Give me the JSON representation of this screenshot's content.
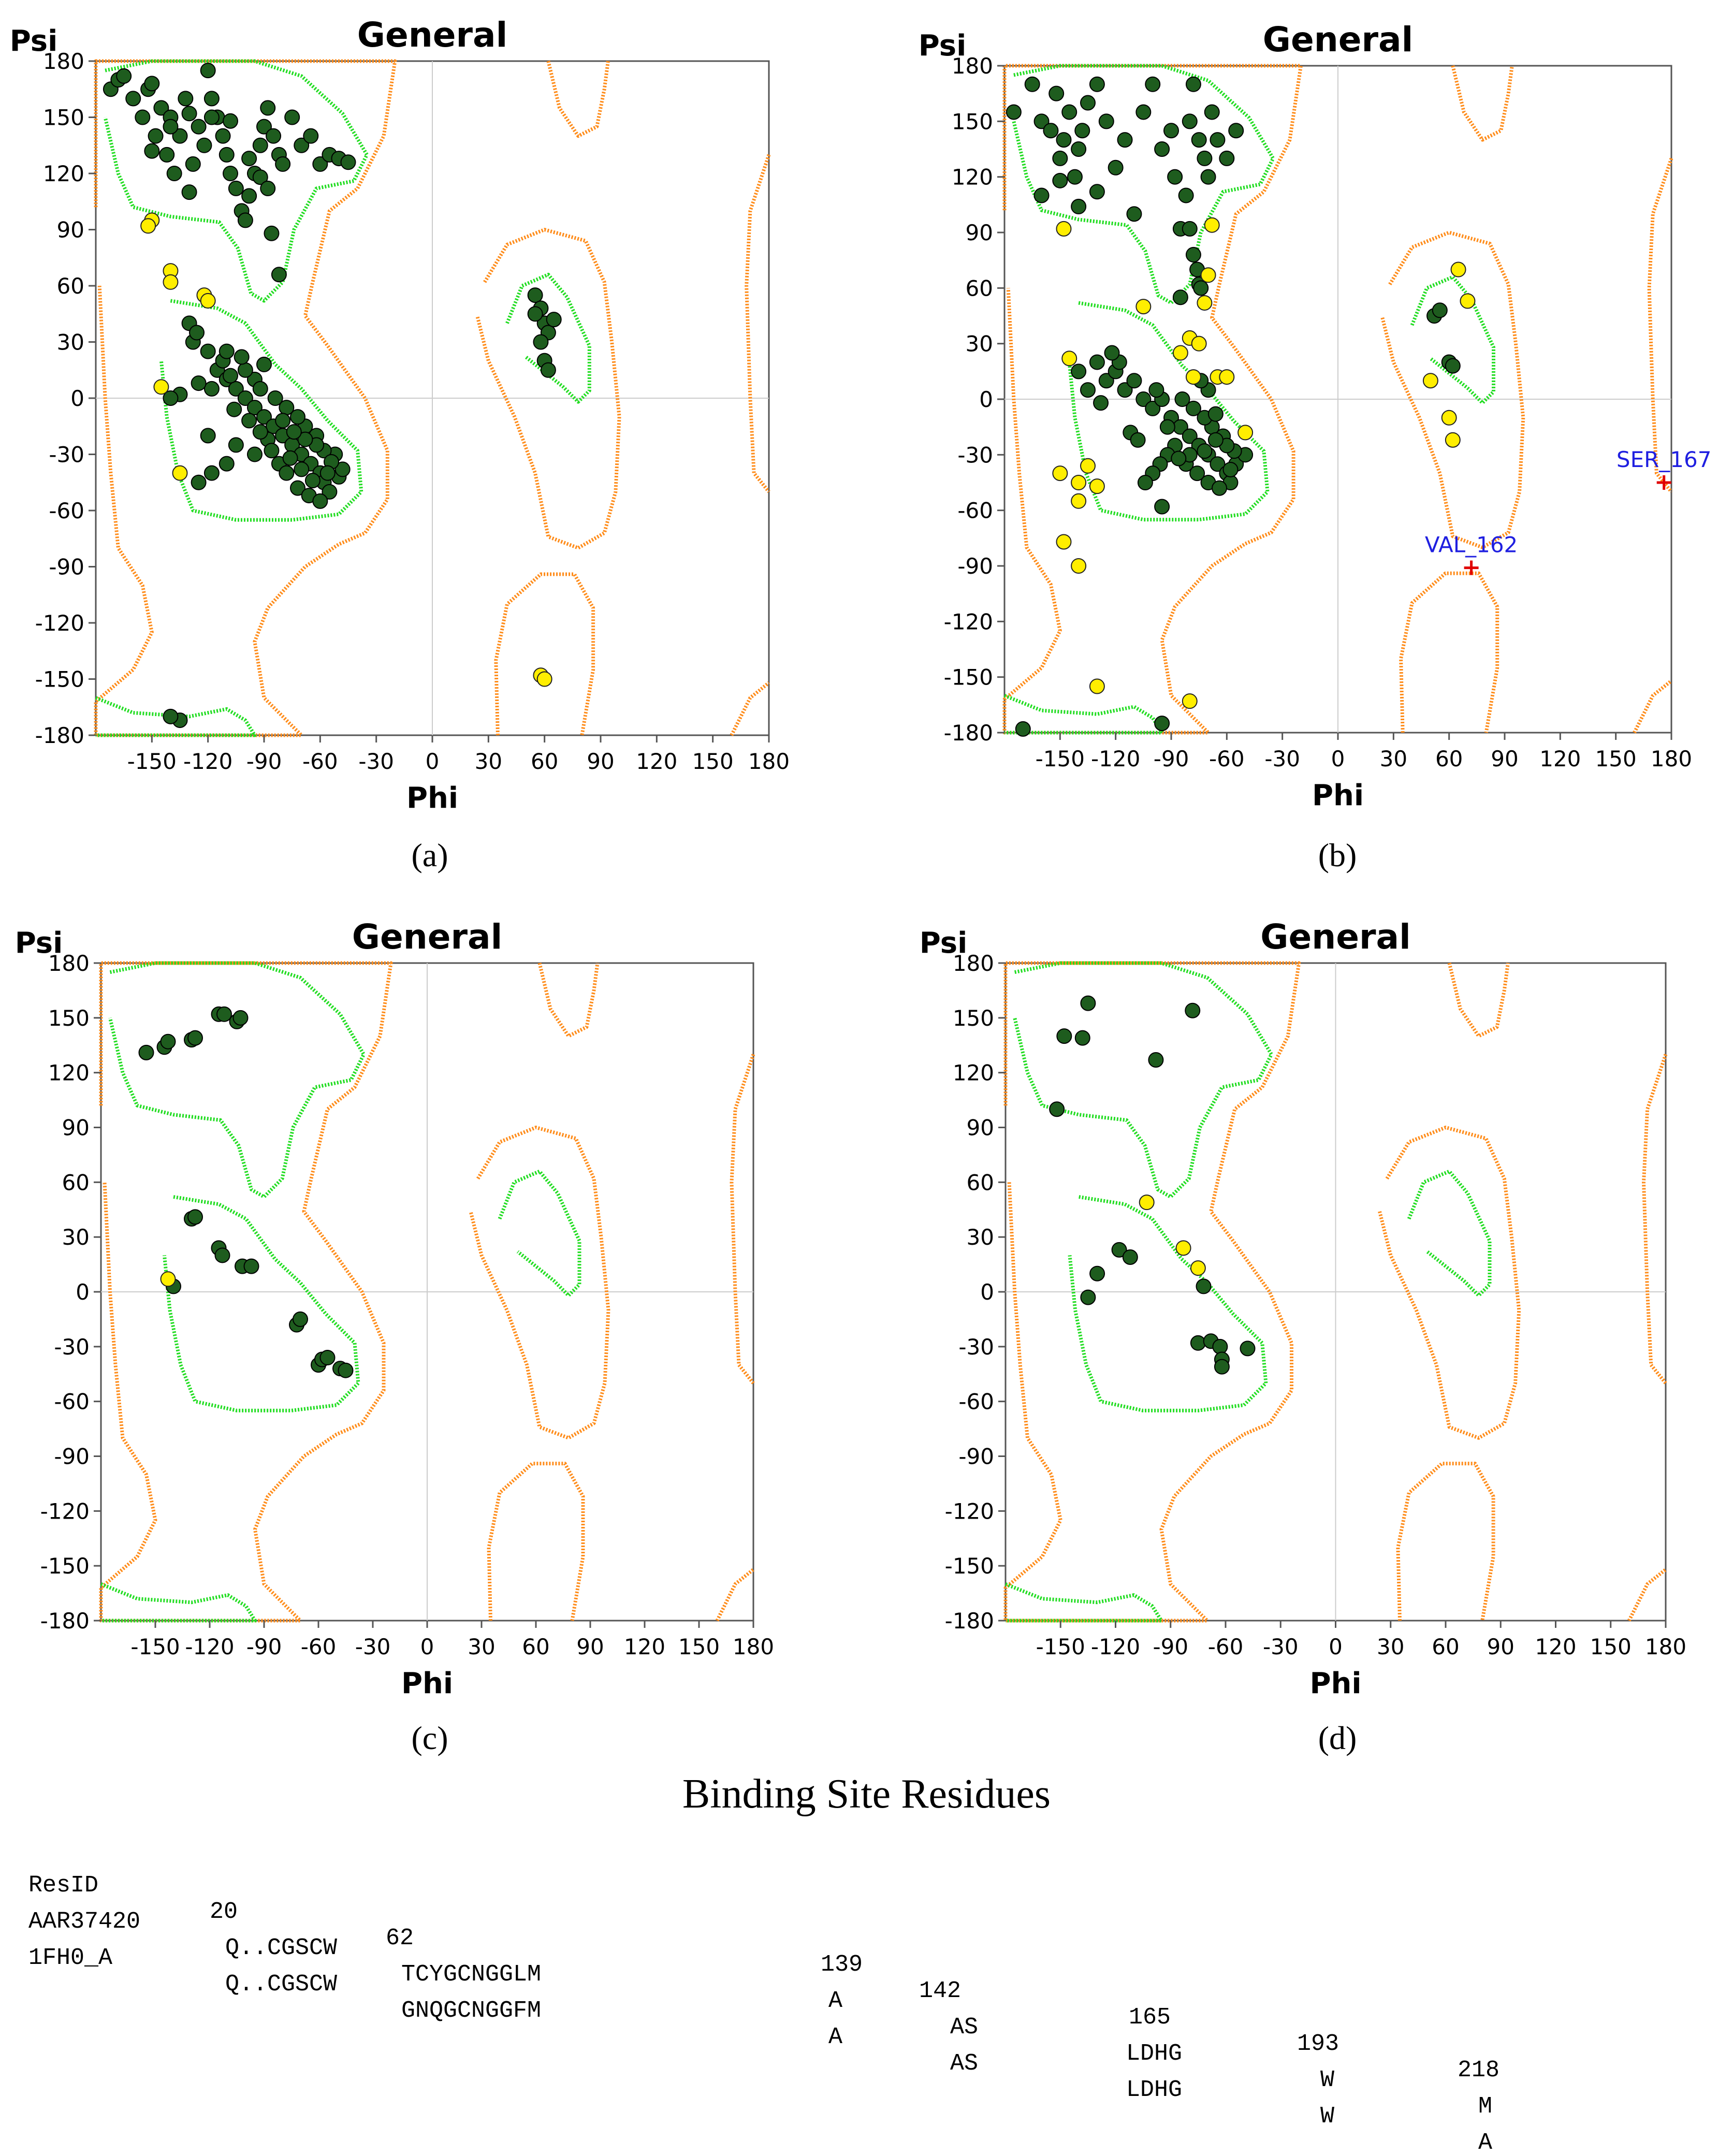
{
  "colors": {
    "core": "#22dd22",
    "allowed": "#ff8c1a",
    "favored_point": "#1e5c1e",
    "allowed_point": "#ffee00",
    "outlier": "#e00000",
    "outlier_label": "#1f1fe0"
  },
  "chart_data": [
    {
      "type": "scatter",
      "panel": "(a)",
      "title": "General",
      "xlabel": "Phi",
      "ylabel": "Psi",
      "xlim": [
        -180,
        180
      ],
      "ylim": [
        -180,
        180
      ],
      "xticks": [
        -150,
        -120,
        -90,
        -60,
        -30,
        0,
        30,
        60,
        90,
        120,
        150,
        180
      ],
      "yticks": [
        180,
        150,
        120,
        90,
        60,
        30,
        0,
        -30,
        -60,
        -90,
        -120,
        -150,
        -180
      ],
      "favored": [
        [
          -172,
          165
        ],
        [
          -168,
          170
        ],
        [
          -165,
          172
        ],
        [
          -160,
          160
        ],
        [
          -155,
          150
        ],
        [
          -152,
          165
        ],
        [
          -150,
          168
        ],
        [
          -148,
          140
        ],
        [
          -145,
          155
        ],
        [
          -142,
          130
        ],
        [
          -140,
          150
        ],
        [
          -138,
          120
        ],
        [
          -135,
          140
        ],
        [
          -132,
          160
        ],
        [
          -130,
          110
        ],
        [
          -128,
          125
        ],
        [
          -125,
          145
        ],
        [
          -122,
          135
        ],
        [
          -120,
          175
        ],
        [
          -118,
          160
        ],
        [
          -115,
          150
        ],
        [
          -112,
          140
        ],
        [
          -110,
          130
        ],
        [
          -108,
          120
        ],
        [
          -105,
          112
        ],
        [
          -102,
          100
        ],
        [
          -100,
          95
        ],
        [
          -98,
          108
        ],
        [
          -95,
          120
        ],
        [
          -92,
          135
        ],
        [
          -90,
          145
        ],
        [
          -88,
          155
        ],
        [
          -85,
          140
        ],
        [
          -82,
          130
        ],
        [
          -80,
          125
        ],
        [
          -75,
          150
        ],
        [
          -70,
          135
        ],
        [
          -65,
          140
        ],
        [
          -60,
          125
        ],
        [
          -55,
          130
        ],
        [
          -50,
          128
        ],
        [
          -45,
          126
        ],
        [
          -150,
          132
        ],
        [
          -140,
          145
        ],
        [
          -130,
          152
        ],
        [
          -118,
          150
        ],
        [
          -108,
          148
        ],
        [
          -98,
          128
        ],
        [
          -92,
          118
        ],
        [
          -88,
          112
        ],
        [
          -86,
          88
        ],
        [
          -82,
          66
        ],
        [
          -130,
          40
        ],
        [
          -128,
          30
        ],
        [
          -126,
          35
        ],
        [
          -120,
          25
        ],
        [
          -115,
          15
        ],
        [
          -110,
          10
        ],
        [
          -105,
          5
        ],
        [
          -100,
          0
        ],
        [
          -95,
          -5
        ],
        [
          -90,
          -10
        ],
        [
          -85,
          -15
        ],
        [
          -80,
          -20
        ],
        [
          -75,
          -25
        ],
        [
          -70,
          -30
        ],
        [
          -65,
          -35
        ],
        [
          -60,
          -40
        ],
        [
          -58,
          -45
        ],
        [
          -55,
          -50
        ],
        [
          -50,
          -42
        ],
        [
          -48,
          -38
        ],
        [
          -52,
          -30
        ],
        [
          -62,
          -20
        ],
        [
          -68,
          -15
        ],
        [
          -72,
          -10
        ],
        [
          -78,
          -5
        ],
        [
          -84,
          0
        ],
        [
          -95,
          10
        ],
        [
          -100,
          15
        ],
        [
          -108,
          12
        ],
        [
          -112,
          20
        ],
        [
          -118,
          5
        ],
        [
          -125,
          8
        ],
        [
          -135,
          2
        ],
        [
          -140,
          0
        ],
        [
          -120,
          -20
        ],
        [
          -118,
          -40
        ],
        [
          -110,
          -35
        ],
        [
          -125,
          -45
        ],
        [
          -105,
          -25
        ],
        [
          -95,
          -30
        ],
        [
          -88,
          -22
        ],
        [
          -82,
          -35
        ],
        [
          -78,
          -40
        ],
        [
          -72,
          -48
        ],
        [
          -66,
          -52
        ],
        [
          -60,
          -55
        ],
        [
          -58,
          -28
        ],
        [
          -62,
          -25
        ],
        [
          -68,
          -22
        ],
        [
          -74,
          -18
        ],
        [
          -80,
          -12
        ],
        [
          -54,
          -34
        ],
        [
          -56,
          -40
        ],
        [
          -64,
          -44
        ],
        [
          -70,
          -38
        ],
        [
          -76,
          -32
        ],
        [
          -86,
          -28
        ],
        [
          -92,
          -18
        ],
        [
          -98,
          -12
        ],
        [
          -102,
          22
        ],
        [
          -106,
          -6
        ],
        [
          -92,
          5
        ],
        [
          -110,
          25
        ],
        [
          -90,
          18
        ],
        [
          55,
          55
        ],
        [
          58,
          48
        ],
        [
          60,
          40
        ],
        [
          62,
          35
        ],
        [
          58,
          30
        ],
        [
          60,
          20
        ],
        [
          62,
          15
        ],
        [
          55,
          45
        ],
        [
          65,
          42
        ],
        [
          -135,
          -172
        ],
        [
          -140,
          -170
        ]
      ],
      "allowed": [
        [
          -150,
          95
        ],
        [
          -152,
          92
        ],
        [
          -140,
          68
        ],
        [
          -140,
          62
        ],
        [
          -122,
          55
        ],
        [
          -120,
          52
        ],
        [
          -145,
          6
        ],
        [
          -135,
          -40
        ],
        [
          58,
          -148
        ],
        [
          60,
          -150
        ]
      ],
      "outliers": []
    },
    {
      "type": "scatter",
      "panel": "(b)",
      "title": "General",
      "xlabel": "Phi",
      "ylabel": "Psi",
      "xlim": [
        -180,
        180
      ],
      "ylim": [
        -180,
        180
      ],
      "xticks": [
        -150,
        -120,
        -90,
        -60,
        -30,
        0,
        30,
        60,
        90,
        120,
        150,
        180
      ],
      "yticks": [
        180,
        150,
        120,
        90,
        60,
        30,
        0,
        -30,
        -60,
        -90,
        -120,
        -150,
        -180
      ],
      "favored": [
        [
          -175,
          155
        ],
        [
          -165,
          170
        ],
        [
          -160,
          150
        ],
        [
          -155,
          145
        ],
        [
          -152,
          165
        ],
        [
          -150,
          130
        ],
        [
          -148,
          140
        ],
        [
          -145,
          155
        ],
        [
          -142,
          120
        ],
        [
          -140,
          135
        ],
        [
          -138,
          145
        ],
        [
          -135,
          160
        ],
        [
          -130,
          170
        ],
        [
          -125,
          150
        ],
        [
          -120,
          125
        ],
        [
          -115,
          140
        ],
        [
          -110,
          100
        ],
        [
          -105,
          155
        ],
        [
          -100,
          170
        ],
        [
          -95,
          135
        ],
        [
          -90,
          145
        ],
        [
          -88,
          120
        ],
        [
          -85,
          92
        ],
        [
          -82,
          110
        ],
        [
          -80,
          150
        ],
        [
          -78,
          170
        ],
        [
          -75,
          140
        ],
        [
          -72,
          130
        ],
        [
          -70,
          120
        ],
        [
          -68,
          155
        ],
        [
          -65,
          140
        ],
        [
          -60,
          130
        ],
        [
          -55,
          145
        ],
        [
          -160,
          110
        ],
        [
          -150,
          118
        ],
        [
          -140,
          104
        ],
        [
          -130,
          112
        ],
        [
          -80,
          92
        ],
        [
          -78,
          78
        ],
        [
          -76,
          70
        ],
        [
          -75,
          62
        ],
        [
          -85,
          55
        ],
        [
          -74,
          60
        ],
        [
          -130,
          20
        ],
        [
          -125,
          10
        ],
        [
          -120,
          15
        ],
        [
          -118,
          20
        ],
        [
          -115,
          5
        ],
        [
          -110,
          10
        ],
        [
          -105,
          0
        ],
        [
          -100,
          -5
        ],
        [
          -95,
          0
        ],
        [
          -90,
          -10
        ],
        [
          -85,
          -15
        ],
        [
          -80,
          -20
        ],
        [
          -75,
          -25
        ],
        [
          -70,
          -30
        ],
        [
          -65,
          -35
        ],
        [
          -60,
          -40
        ],
        [
          -58,
          -45
        ],
        [
          -55,
          -35
        ],
        [
          -50,
          -30
        ],
        [
          -62,
          -20
        ],
        [
          -68,
          -15
        ],
        [
          -72,
          -10
        ],
        [
          -78,
          -5
        ],
        [
          -84,
          0
        ],
        [
          -88,
          -25
        ],
        [
          -92,
          -30
        ],
        [
          -96,
          -35
        ],
        [
          -100,
          -40
        ],
        [
          -104,
          -45
        ],
        [
          -82,
          -35
        ],
        [
          -76,
          -40
        ],
        [
          -70,
          -45
        ],
        [
          -64,
          -48
        ],
        [
          -58,
          -38
        ],
        [
          -56,
          -28
        ],
        [
          -60,
          -25
        ],
        [
          -66,
          -22
        ],
        [
          -72,
          -28
        ],
        [
          -80,
          -30
        ],
        [
          -86,
          -32
        ],
        [
          -92,
          -15
        ],
        [
          -98,
          5
        ],
        [
          -140,
          15
        ],
        [
          -135,
          5
        ],
        [
          -128,
          -2
        ],
        [
          -122,
          25
        ],
        [
          -112,
          -18
        ],
        [
          -108,
          -22
        ],
        [
          -70,
          5
        ],
        [
          -74,
          10
        ],
        [
          -66,
          -8
        ],
        [
          -95,
          -58
        ],
        [
          52,
          45
        ],
        [
          55,
          48
        ],
        [
          60,
          20
        ],
        [
          62,
          18
        ],
        [
          -170,
          -178
        ],
        [
          -95,
          -175
        ]
      ],
      "allowed": [
        [
          -148,
          92
        ],
        [
          -105,
          50
        ],
        [
          -80,
          33
        ],
        [
          -72,
          52
        ],
        [
          -70,
          67
        ],
        [
          -68,
          94
        ],
        [
          -75,
          30
        ],
        [
          -85,
          25
        ],
        [
          -78,
          12
        ],
        [
          -65,
          12
        ],
        [
          -60,
          12
        ],
        [
          -50,
          -18
        ],
        [
          -145,
          22
        ],
        [
          -150,
          -40
        ],
        [
          -140,
          -45
        ],
        [
          -135,
          -36
        ],
        [
          -130,
          -47
        ],
        [
          -140,
          -55
        ],
        [
          -148,
          -77
        ],
        [
          -140,
          -90
        ],
        [
          -130,
          -155
        ],
        [
          -80,
          -163
        ],
        [
          65,
          70
        ],
        [
          70,
          53
        ],
        [
          50,
          10
        ],
        [
          60,
          -10
        ],
        [
          62,
          -22
        ]
      ],
      "outliers": [
        {
          "label": "SER_167",
          "phi": 176,
          "psi": -45
        },
        {
          "label": "VAL_162",
          "phi": 72,
          "psi": -91
        }
      ]
    },
    {
      "type": "scatter",
      "panel": "(c)",
      "title": "General",
      "xlabel": "Phi",
      "ylabel": "Psi",
      "xlim": [
        -180,
        180
      ],
      "ylim": [
        -180,
        180
      ],
      "xticks": [
        -150,
        -120,
        -90,
        -60,
        -30,
        0,
        30,
        60,
        90,
        120,
        150,
        180
      ],
      "yticks": [
        180,
        150,
        120,
        90,
        60,
        30,
        0,
        -30,
        -60,
        -90,
        -120,
        -150,
        -180
      ],
      "favored": [
        [
          -155,
          131
        ],
        [
          -145,
          134
        ],
        [
          -143,
          137
        ],
        [
          -130,
          138
        ],
        [
          -128,
          139
        ],
        [
          -115,
          152
        ],
        [
          -112,
          152
        ],
        [
          -105,
          148
        ],
        [
          -103,
          150
        ],
        [
          -130,
          40
        ],
        [
          -128,
          41
        ],
        [
          -115,
          24
        ],
        [
          -113,
          20
        ],
        [
          -102,
          14
        ],
        [
          -97,
          14
        ],
        [
          -72,
          -18
        ],
        [
          -70,
          -15
        ],
        [
          -60,
          -40
        ],
        [
          -58,
          -37
        ],
        [
          -55,
          -36
        ],
        [
          -48,
          -42
        ],
        [
          -45,
          -43
        ],
        [
          -140,
          3
        ]
      ],
      "allowed": [
        [
          -143,
          7
        ]
      ],
      "outliers": []
    },
    {
      "type": "scatter",
      "panel": "(d)",
      "title": "General",
      "xlabel": "Phi",
      "ylabel": "Psi",
      "xlim": [
        -180,
        180
      ],
      "ylim": [
        -180,
        180
      ],
      "xticks": [
        -150,
        -120,
        -90,
        -60,
        -30,
        0,
        30,
        60,
        90,
        120,
        150,
        180
      ],
      "yticks": [
        180,
        150,
        120,
        90,
        60,
        30,
        0,
        -30,
        -60,
        -90,
        -120,
        -150,
        -180
      ],
      "favored": [
        [
          -152,
          100
        ],
        [
          -148,
          140
        ],
        [
          -138,
          139
        ],
        [
          -135,
          158
        ],
        [
          -98,
          127
        ],
        [
          -78,
          154
        ],
        [
          -130,
          10
        ],
        [
          -135,
          -3
        ],
        [
          -118,
          23
        ],
        [
          -112,
          19
        ],
        [
          -72,
          3
        ],
        [
          -75,
          -28
        ],
        [
          -68,
          -27
        ],
        [
          -63,
          -30
        ],
        [
          -62,
          -37
        ],
        [
          -62,
          -41
        ],
        [
          -48,
          -31
        ]
      ],
      "allowed": [
        [
          -103,
          49
        ],
        [
          -83,
          24
        ],
        [
          -75,
          13
        ]
      ],
      "outliers": []
    }
  ],
  "binding": {
    "title": "Binding  Site Residues",
    "rows": [
      [
        "ResID",
        "20",
        "62",
        "139",
        "142",
        "165",
        "193",
        "218"
      ],
      [
        "AAR37420",
        "Q..CGSCW",
        "TCYGCNGGLM",
        "A",
        "AS",
        "LDHG",
        "W",
        "M"
      ],
      [
        "1FH0_A",
        "Q..CGSCW",
        "GNQGCNGGFM",
        "A",
        "AS",
        "LDHG",
        "W",
        "A"
      ]
    ]
  }
}
